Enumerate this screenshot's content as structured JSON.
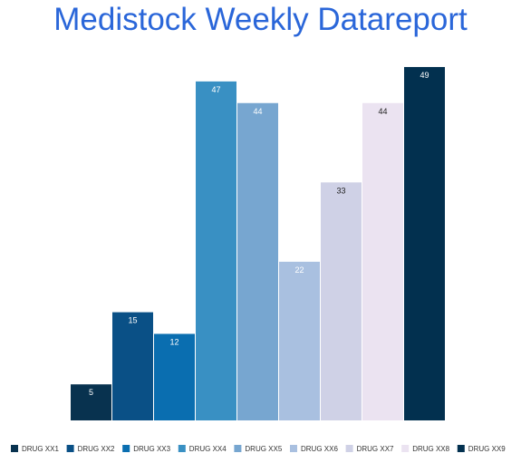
{
  "chart_data": {
    "type": "bar",
    "title": "Medistock Weekly Datareport",
    "categories": [
      "DRUG XX1",
      "DRUG XX2",
      "DRUG XX3",
      "DRUG XX4",
      "DRUG XX5",
      "DRUG XX6",
      "DRUG XX7",
      "DRUG XX8",
      "DRUG XX9"
    ],
    "values": [
      5,
      15,
      12,
      47,
      44,
      22,
      33,
      44,
      49
    ],
    "colors": [
      "#08324f",
      "#0a5086",
      "#0a6eb0",
      "#3990c3",
      "#77a6d0",
      "#a9c0e0",
      "#cfd1e6",
      "#ebe3f1",
      "#02304f"
    ],
    "label_colors": [
      "#ffffff",
      "#ffffff",
      "#ffffff",
      "#ffffff",
      "#ffffff",
      "#ffffff",
      "#222222",
      "#222222",
      "#ffffff"
    ],
    "ylim": [
      0,
      50
    ],
    "grid": false,
    "legend": "bottom",
    "xlabel": "",
    "ylabel": ""
  }
}
